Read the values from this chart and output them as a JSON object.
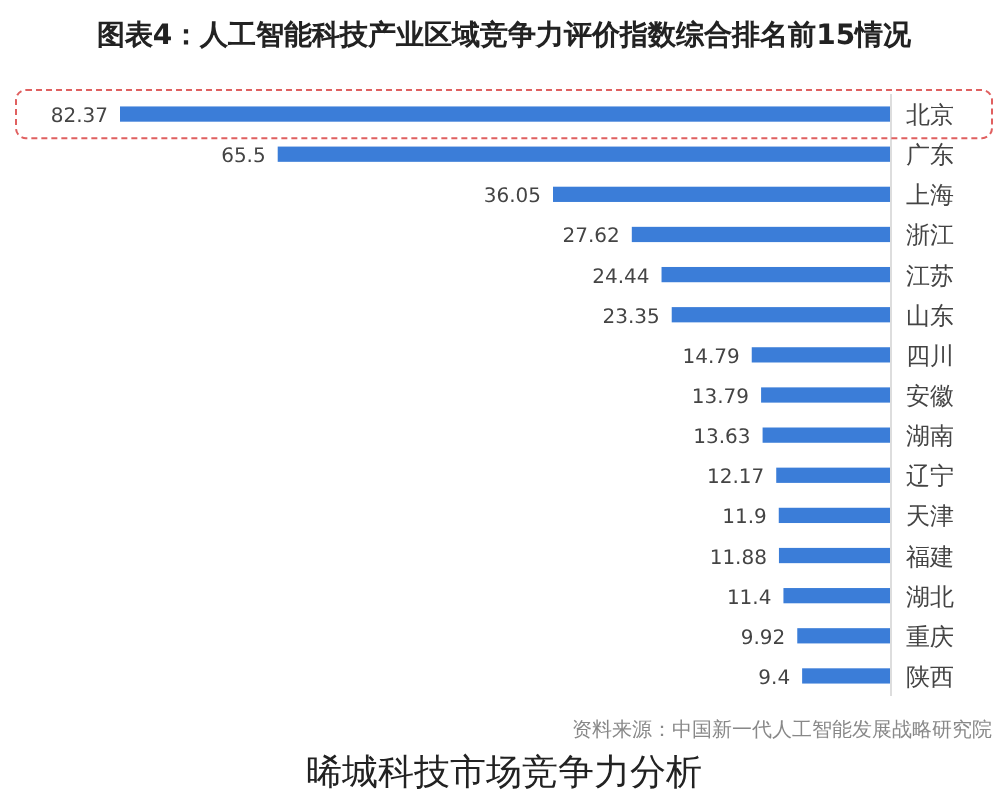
{
  "chart_data": {
    "type": "bar",
    "orientation": "horizontal",
    "title": "图表4：人工智能科技产业区域竞争力评价指数综合排名前15情况",
    "categories": [
      "北京",
      "广东",
      "上海",
      "浙江",
      "江苏",
      "山东",
      "四川",
      "安徽",
      "湖南",
      "辽宁",
      "天津",
      "福建",
      "湖北",
      "重庆",
      "陕西"
    ],
    "values": [
      82.37,
      65.5,
      36.05,
      27.62,
      24.44,
      23.35,
      14.79,
      13.79,
      13.63,
      12.17,
      11.9,
      11.88,
      11.4,
      9.92,
      9.4
    ],
    "color": "#3b7dd8",
    "data_labels": true,
    "annotations": [
      "资料来源：中国新一代人工智能发展战略研究院",
      "晞城科技市场竞争力分析"
    ]
  }
}
